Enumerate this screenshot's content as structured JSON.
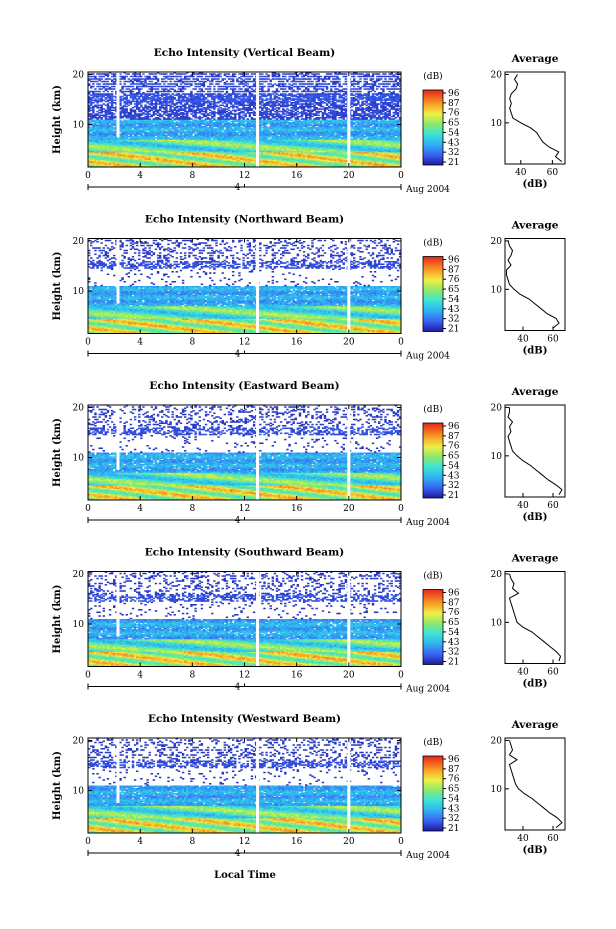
{
  "figure": {
    "xlabel": "Local Time",
    "date_label": "Aug 2004",
    "date_tick": "4",
    "ylabel": "Height (km)",
    "colorbar_label": "(dB)",
    "colorbar_ticks": [
      "96",
      "87",
      "76",
      "65",
      "54",
      "43",
      "32",
      "21"
    ],
    "average_title": "Average",
    "average_xlabel": "(dB)"
  },
  "chart_data": [
    {
      "type": "heatmap",
      "title": "Echo Intensity (Vertical Beam)",
      "xlabel": "Local Time",
      "ylabel": "Height (km)",
      "xlim": [
        0,
        24
      ],
      "ylim": [
        1.5,
        20.5
      ],
      "x_ticks": [
        "0",
        "4",
        "8",
        "12",
        "16",
        "20",
        "0"
      ],
      "y_ticks": [
        "20",
        "10"
      ],
      "colorbar": {
        "label": "(dB)",
        "ticks": [
          96,
          87,
          76,
          65,
          54,
          43,
          32,
          21
        ]
      },
      "gaps_local_time": [
        2.3,
        13.0,
        20.0
      ],
      "average_profile": {
        "title": "Average",
        "xlabel": "(dB)",
        "xlim": [
          30,
          68
        ],
        "x_ticks": [
          "40",
          "60"
        ],
        "y_ticks": [
          "20",
          "10"
        ],
        "height": [
          20,
          19,
          18,
          17,
          16,
          15,
          14,
          13,
          12,
          11,
          10,
          9,
          8,
          7,
          6,
          5,
          4,
          3,
          2
        ],
        "db": [
          38,
          36,
          38,
          37,
          34,
          33,
          34,
          33,
          34,
          35,
          40,
          46,
          50,
          52,
          54,
          58,
          64,
          62,
          66
        ]
      }
    },
    {
      "type": "heatmap",
      "title": "Echo Intensity (Northward Beam)",
      "xlabel": "Local Time",
      "ylabel": "Height (km)",
      "xlim": [
        0,
        24
      ],
      "ylim": [
        1.5,
        20.5
      ],
      "x_ticks": [
        "0",
        "4",
        "8",
        "12",
        "16",
        "20",
        "0"
      ],
      "y_ticks": [
        "20",
        "10"
      ],
      "colorbar": {
        "label": "(dB)",
        "ticks": [
          96,
          87,
          76,
          65,
          54,
          43,
          32,
          21
        ]
      },
      "gaps_local_time": [
        2.3,
        13.0,
        20.0
      ],
      "average_profile": {
        "title": "Average",
        "xlabel": "(dB)",
        "xlim": [
          28,
          68
        ],
        "x_ticks": [
          "40",
          "60"
        ],
        "y_ticks": [
          "20",
          "10"
        ],
        "height": [
          20,
          19,
          18,
          17,
          16,
          15,
          14,
          13,
          12,
          11,
          10,
          9,
          8,
          7,
          6,
          5,
          4,
          3,
          2
        ],
        "db": [
          30,
          31,
          33,
          32,
          30,
          32,
          29,
          29,
          30,
          31,
          34,
          38,
          44,
          48,
          52,
          56,
          62,
          64,
          60
        ]
      }
    },
    {
      "type": "heatmap",
      "title": "Echo Intensity (Eastward Beam)",
      "xlabel": "Local Time",
      "ylabel": "Height (km)",
      "xlim": [
        0,
        24
      ],
      "ylim": [
        1.5,
        20.5
      ],
      "x_ticks": [
        "0",
        "4",
        "8",
        "12",
        "16",
        "20",
        "0"
      ],
      "y_ticks": [
        "20",
        "10"
      ],
      "colorbar": {
        "label": "(dB)",
        "ticks": [
          96,
          87,
          76,
          65,
          54,
          43,
          32,
          21
        ]
      },
      "gaps_local_time": [
        2.3,
        13.0,
        20.0
      ],
      "average_profile": {
        "title": "Average",
        "xlabel": "(dB)",
        "xlim": [
          28,
          68
        ],
        "x_ticks": [
          "40",
          "60"
        ],
        "y_ticks": [
          "20",
          "10"
        ],
        "height": [
          20,
          19,
          18,
          17,
          16,
          15,
          14,
          13,
          12,
          11,
          10,
          9,
          8,
          7,
          6,
          5,
          4,
          3,
          2
        ],
        "db": [
          31,
          31,
          30,
          33,
          31,
          32,
          30,
          31,
          32,
          33,
          36,
          40,
          45,
          49,
          53,
          57,
          62,
          66,
          64
        ]
      }
    },
    {
      "type": "heatmap",
      "title": "Echo Intensity (Southward Beam)",
      "xlabel": "Local Time",
      "ylabel": "Height (km)",
      "xlim": [
        0,
        24
      ],
      "ylim": [
        1.5,
        20.5
      ],
      "x_ticks": [
        "0",
        "4",
        "8",
        "12",
        "16",
        "20",
        "0"
      ],
      "y_ticks": [
        "20",
        "10"
      ],
      "colorbar": {
        "label": "(dB)",
        "ticks": [
          96,
          87,
          76,
          65,
          54,
          43,
          32,
          21
        ]
      },
      "gaps_local_time": [
        2.3,
        13.0,
        20.0
      ],
      "average_profile": {
        "title": "Average",
        "xlabel": "(dB)",
        "xlim": [
          28,
          68
        ],
        "x_ticks": [
          "40",
          "60"
        ],
        "y_ticks": [
          "20",
          "10"
        ],
        "height": [
          20,
          19,
          18,
          17,
          16,
          15,
          14,
          13,
          12,
          11,
          10,
          9,
          8,
          7,
          6,
          5,
          4,
          3,
          2
        ],
        "db": [
          31,
          32,
          34,
          33,
          37,
          31,
          32,
          33,
          34,
          35,
          36,
          40,
          46,
          50,
          54,
          58,
          62,
          65,
          64
        ]
      }
    },
    {
      "type": "heatmap",
      "title": "Echo Intensity (Westward Beam)",
      "xlabel": "Local Time",
      "ylabel": "Height (km)",
      "xlim": [
        0,
        24
      ],
      "ylim": [
        1.5,
        20.5
      ],
      "x_ticks": [
        "0",
        "4",
        "8",
        "12",
        "16",
        "20",
        "0"
      ],
      "y_ticks": [
        "20",
        "10"
      ],
      "colorbar": {
        "label": "(dB)",
        "ticks": [
          96,
          87,
          76,
          65,
          54,
          43,
          32,
          21
        ]
      },
      "gaps_local_time": [
        2.3,
        13.0,
        20.0
      ],
      "average_profile": {
        "title": "Average",
        "xlabel": "(dB)",
        "xlim": [
          28,
          68
        ],
        "x_ticks": [
          "40",
          "60"
        ],
        "y_ticks": [
          "20",
          "10"
        ],
        "height": [
          20,
          19,
          18,
          17,
          16,
          15,
          14,
          13,
          12,
          11,
          10,
          9,
          8,
          7,
          6,
          5,
          4,
          3,
          2
        ],
        "db": [
          31,
          32,
          33,
          31,
          36,
          31,
          32,
          33,
          34,
          35,
          37,
          41,
          46,
          50,
          54,
          58,
          63,
          66,
          62
        ]
      }
    }
  ]
}
